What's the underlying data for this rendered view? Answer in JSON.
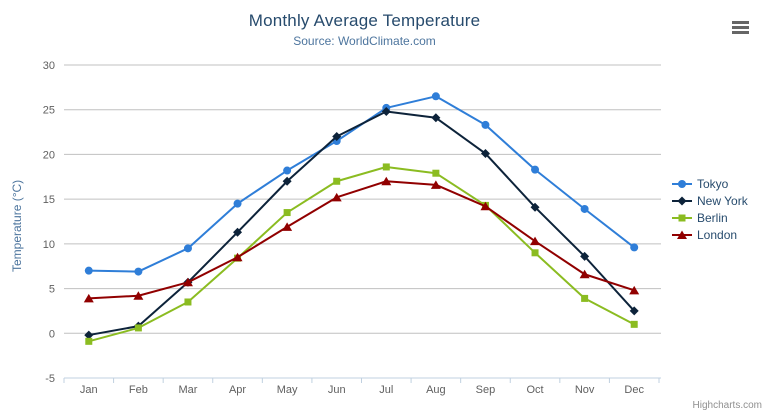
{
  "chart_data": {
    "type": "line",
    "title": "Monthly Average Temperature",
    "subtitle": "Source: WorldClimate.com",
    "categories": [
      "Jan",
      "Feb",
      "Mar",
      "Apr",
      "May",
      "Jun",
      "Jul",
      "Aug",
      "Sep",
      "Oct",
      "Nov",
      "Dec"
    ],
    "xlabel": "",
    "ylabel": "Temperature (°C)",
    "ylim": [
      -5,
      30
    ],
    "ytick_interval": 5,
    "grid": true,
    "legend_position": "right",
    "series": [
      {
        "name": "Tokyo",
        "color": "#2f7ed8",
        "marker": "circle",
        "values": [
          7.0,
          6.9,
          9.5,
          14.5,
          18.2,
          21.5,
          25.2,
          26.5,
          23.3,
          18.3,
          13.9,
          9.6
        ]
      },
      {
        "name": "New York",
        "color": "#0d233a",
        "marker": "diamond",
        "values": [
          -0.2,
          0.8,
          5.7,
          11.3,
          17.0,
          22.0,
          24.8,
          24.1,
          20.1,
          14.1,
          8.6,
          2.5
        ]
      },
      {
        "name": "Berlin",
        "color": "#8bbc21",
        "marker": "square",
        "values": [
          -0.9,
          0.6,
          3.5,
          8.4,
          13.5,
          17.0,
          18.6,
          17.9,
          14.3,
          9.0,
          3.9,
          1.0
        ]
      },
      {
        "name": "London",
        "color": "#910000",
        "marker": "triangle",
        "values": [
          3.9,
          4.2,
          5.7,
          8.5,
          11.9,
          15.2,
          17.0,
          16.6,
          14.2,
          10.3,
          6.6,
          4.8
        ]
      }
    ]
  },
  "menu": {
    "icon": "hamburger-menu-icon"
  },
  "credit": {
    "label": "Highcharts.com"
  },
  "theme": {
    "background": "#ffffff",
    "title_color": "#274b6d",
    "subtitle_color": "#4d759e",
    "axis_title_color": "#4d759e",
    "axis_label_color": "#606060",
    "grid_color": "#c0c0c0",
    "axis_line_color": "#c0d0e0",
    "legend_text_color": "#274b6d",
    "menu_icon_color": "#666666",
    "credit_color": "#909090"
  }
}
